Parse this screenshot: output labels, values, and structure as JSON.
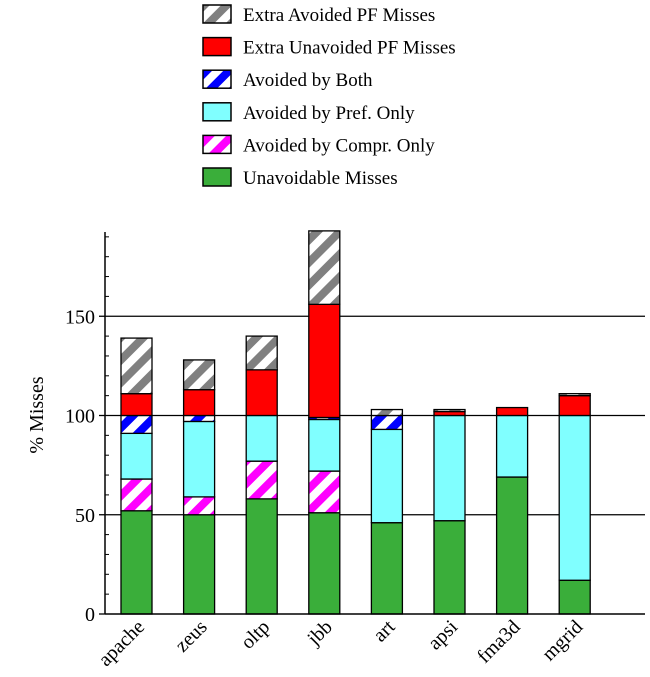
{
  "chart_data": {
    "type": "bar",
    "stacked": true,
    "title": "",
    "xlabel": "",
    "ylabel": "% Misses",
    "ylim": [
      0,
      190
    ],
    "yticks": [
      0,
      50,
      100,
      150
    ],
    "grid_lines": [
      50,
      100,
      150
    ],
    "legend_position": "top",
    "categories": [
      "apache",
      "zeus",
      "oltp",
      "jbb",
      "art",
      "apsi",
      "fma3d",
      "mgrid"
    ],
    "series": [
      {
        "name": "Unavoidable Misses",
        "color": "#3aae3a",
        "pattern": "solid",
        "values": [
          52,
          50,
          58,
          51,
          46,
          47,
          69,
          17
        ]
      },
      {
        "name": "Avoided by Compr. Only",
        "color": "#ff00ff",
        "pattern": "hatch",
        "values": [
          16,
          9,
          19,
          21,
          0,
          0,
          0,
          0
        ]
      },
      {
        "name": "Avoided by Pref. Only",
        "color": "#80ffff",
        "pattern": "solid",
        "values": [
          23,
          38,
          23,
          26,
          47,
          53,
          31,
          83
        ]
      },
      {
        "name": "Avoided by Both",
        "color": "#0000ff",
        "pattern": "hatch",
        "values": [
          9,
          3,
          0,
          1,
          7,
          0,
          0,
          0
        ]
      },
      {
        "name": "Extra Unavoided PF Misses",
        "color": "#ff0000",
        "pattern": "solid",
        "values": [
          11,
          13,
          23,
          57,
          0,
          2,
          4,
          10
        ]
      },
      {
        "name": "Extra Avoided PF Misses",
        "color": "#808080",
        "pattern": "hatch",
        "values": [
          28,
          15,
          17,
          37,
          3,
          1,
          0,
          1
        ]
      }
    ]
  }
}
